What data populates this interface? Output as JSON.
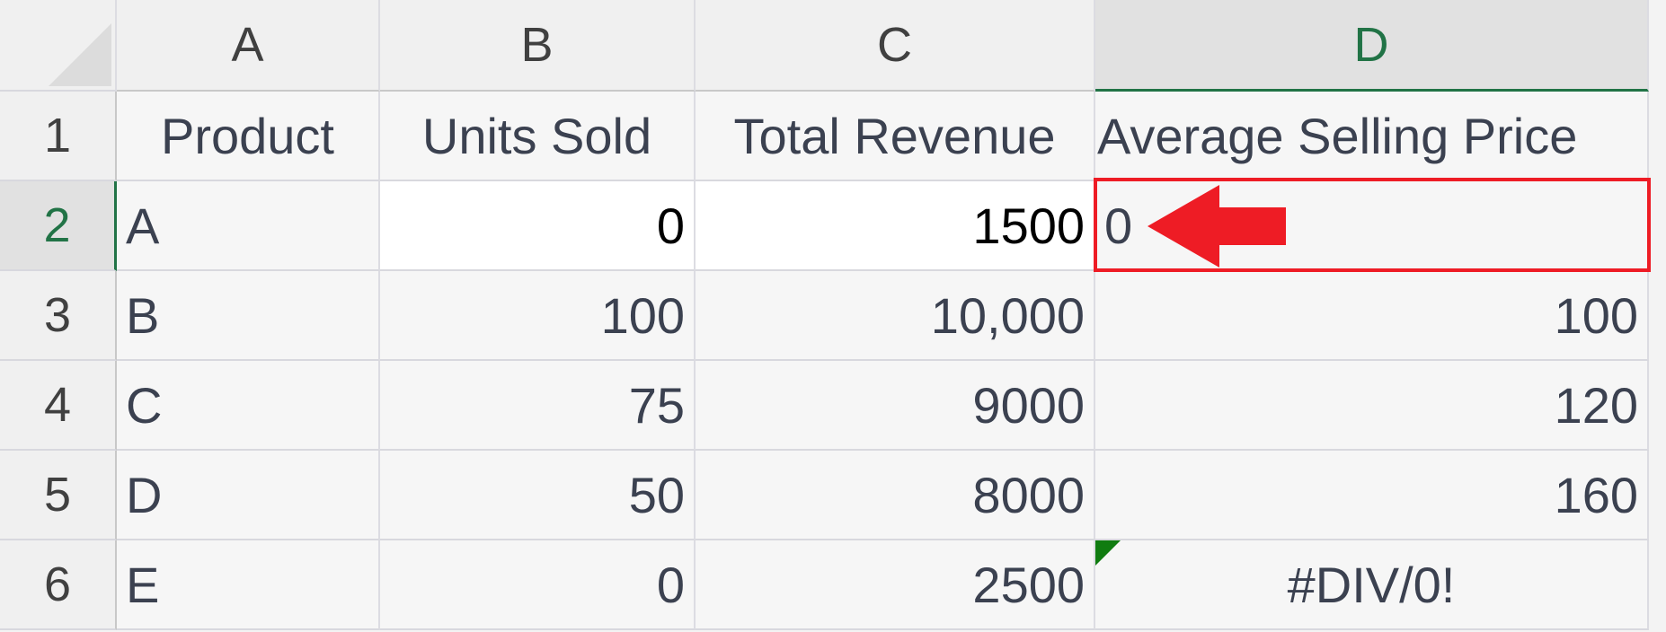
{
  "columns": [
    "A",
    "B",
    "C",
    "D"
  ],
  "selected_column": "D",
  "selected_row": "2",
  "rows": [
    {
      "num": "1",
      "cells": [
        "Product",
        "Units Sold",
        "Total Revenue",
        "Average Selling Price"
      ]
    },
    {
      "num": "2",
      "cells": [
        "A",
        "0",
        "1500",
        "0"
      ]
    },
    {
      "num": "3",
      "cells": [
        "B",
        "100",
        "10,000",
        "100"
      ]
    },
    {
      "num": "4",
      "cells": [
        "C",
        "75",
        "9000",
        "120"
      ]
    },
    {
      "num": "5",
      "cells": [
        "D",
        "50",
        "8000",
        "160"
      ]
    },
    {
      "num": "6",
      "cells": [
        "E",
        "0",
        "2500",
        "#DIV/0!"
      ]
    }
  ],
  "colors": {
    "selection_green": "#217346",
    "highlight_red": "#ee1c25",
    "error_indicator": "#107c10"
  },
  "annotation_icon": "red-arrow-left-icon"
}
